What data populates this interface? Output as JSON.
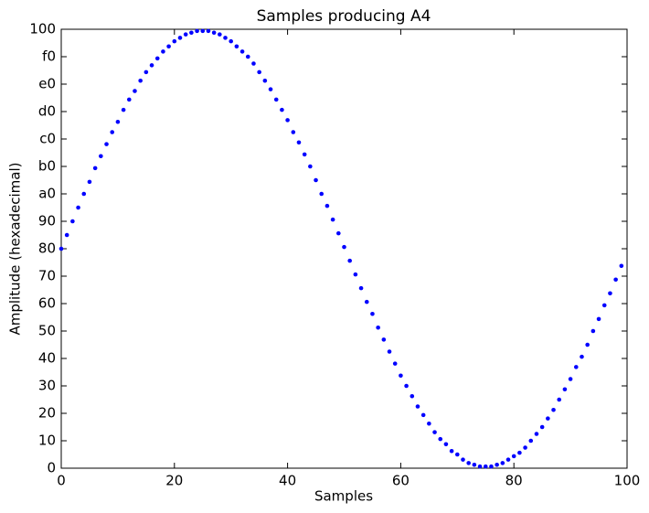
{
  "chart_data": {
    "type": "scatter",
    "title": "Samples producing A4",
    "x_label": "Samples",
    "y_label": "Amplitude (hexadecimal)",
    "color": "#0000ff",
    "x": [
      0,
      1,
      2,
      3,
      4,
      5,
      6,
      7,
      8,
      9,
      10,
      11,
      12,
      13,
      14,
      15,
      16,
      17,
      18,
      19,
      20,
      21,
      22,
      23,
      24,
      25,
      26,
      27,
      28,
      29,
      30,
      31,
      32,
      33,
      34,
      35,
      36,
      37,
      38,
      39,
      40,
      41,
      42,
      43,
      44,
      45,
      46,
      47,
      48,
      49,
      50,
      51,
      52,
      53,
      54,
      55,
      56,
      57,
      58,
      59,
      60,
      61,
      62,
      63,
      64,
      65,
      66,
      67,
      68,
      69,
      70,
      71,
      72,
      73,
      74,
      75,
      76,
      77,
      78,
      79,
      80,
      81,
      82,
      83,
      84,
      85,
      86,
      87,
      88,
      89,
      90,
      91,
      92,
      93,
      94,
      95,
      96,
      97,
      98,
      99
    ],
    "values": [
      128,
      136,
      144,
      152,
      160,
      167,
      175,
      182,
      189,
      196,
      202,
      209,
      215,
      220,
      226,
      231,
      235,
      239,
      243,
      246,
      249,
      251,
      253,
      254,
      255,
      255,
      255,
      254,
      253,
      251,
      249,
      246,
      243,
      240,
      236,
      231,
      226,
      221,
      215,
      209,
      203,
      196,
      190,
      183,
      176,
      168,
      160,
      153,
      145,
      137,
      129,
      121,
      113,
      105,
      97,
      90,
      82,
      75,
      68,
      61,
      54,
      48,
      42,
      36,
      31,
      26,
      21,
      17,
      14,
      10,
      8,
      5,
      3,
      2,
      1,
      1,
      1,
      2,
      3,
      5,
      7,
      9,
      12,
      16,
      20,
      24,
      29,
      34,
      40,
      46,
      52,
      59,
      65,
      72,
      80,
      87,
      95,
      102,
      110,
      118
    ],
    "xlim": [
      0,
      100
    ],
    "xticks": [
      0,
      20,
      40,
      60,
      80,
      100
    ],
    "ylim": [
      0,
      256
    ],
    "yticks": [
      0,
      {
        "value": 16,
        "label": "10"
      },
      {
        "value": 32,
        "label": "20"
      },
      {
        "value": 48,
        "label": "30"
      },
      {
        "value": 64,
        "label": "40"
      },
      {
        "value": 80,
        "label": "50"
      },
      {
        "value": 96,
        "label": "60"
      },
      {
        "value": 112,
        "label": "70"
      },
      {
        "value": 128,
        "label": "80"
      },
      {
        "value": 144,
        "label": "90"
      },
      {
        "value": 160,
        "label": "a0"
      },
      {
        "value": 176,
        "label": "b0"
      },
      {
        "value": 192,
        "label": "c0"
      },
      {
        "value": 208,
        "label": "d0"
      },
      {
        "value": 224,
        "label": "e0"
      },
      {
        "value": 240,
        "label": "f0"
      },
      {
        "value": 256,
        "label": "100"
      }
    ],
    "grid": false
  }
}
